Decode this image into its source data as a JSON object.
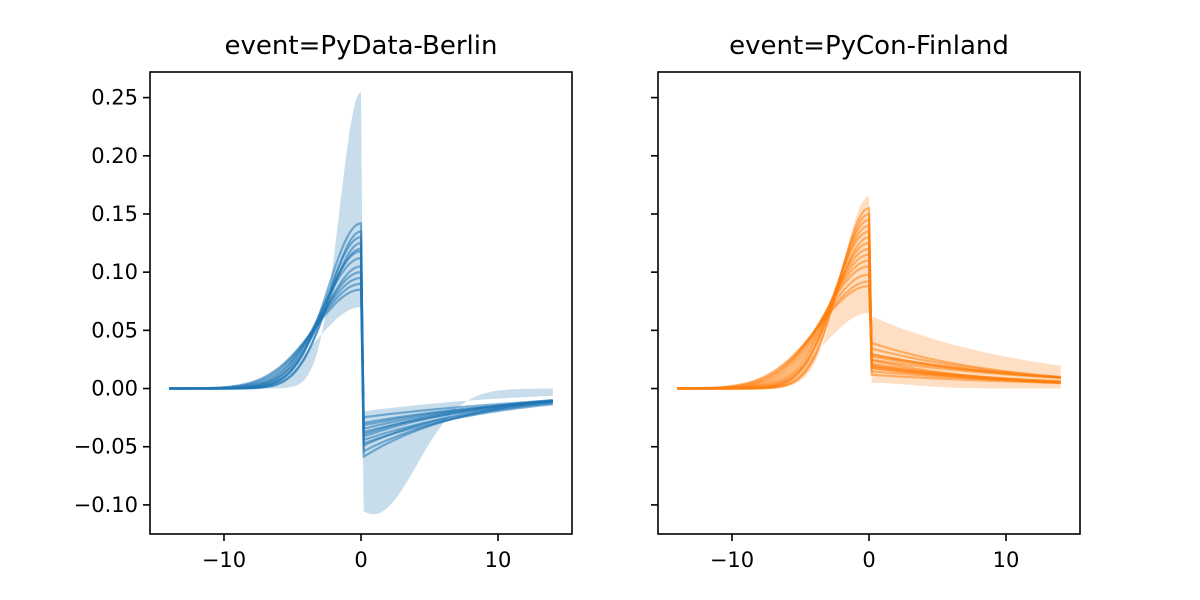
{
  "chart_data": [
    {
      "type": "line",
      "title": "event=PyData-Berlin",
      "color": "#1f77b4",
      "xlim": [
        -15.4,
        15.4
      ],
      "ylim": [
        -0.125,
        0.272
      ],
      "xticks": [
        -10,
        0,
        10
      ],
      "xtick_labels": [
        "−10",
        "0",
        "10"
      ],
      "yticks": [
        -0.1,
        -0.05,
        0,
        0.05,
        0.1,
        0.15,
        0.2,
        0.25
      ],
      "ytick_labels": [
        "−0.10",
        "−0.05",
        "0.00",
        "0.05",
        "0.10",
        "0.15",
        "0.20",
        "0.25"
      ],
      "x_range": [
        -14,
        14
      ],
      "series": [
        {
          "peak": 0.142,
          "drop": -0.04,
          "wl": 3.4,
          "wr": 10
        },
        {
          "peak": 0.135,
          "drop": -0.05,
          "wl": 3.2,
          "wr": 9
        },
        {
          "peak": 0.13,
          "drop": -0.045,
          "wl": 3.5,
          "wr": 11
        },
        {
          "peak": 0.125,
          "drop": -0.035,
          "wl": 3.3,
          "wr": 12
        },
        {
          "peak": 0.12,
          "drop": -0.06,
          "wl": 3.6,
          "wr": 8
        },
        {
          "peak": 0.118,
          "drop": -0.03,
          "wl": 3.8,
          "wr": 14
        },
        {
          "peak": 0.112,
          "drop": -0.025,
          "wl": 4.0,
          "wr": 16
        },
        {
          "peak": 0.105,
          "drop": -0.042,
          "wl": 3.9,
          "wr": 10
        },
        {
          "peak": 0.1,
          "drop": -0.055,
          "wl": 4.2,
          "wr": 9
        },
        {
          "peak": 0.095,
          "drop": -0.038,
          "wl": 4.4,
          "wr": 12
        },
        {
          "peak": 0.09,
          "drop": -0.032,
          "wl": 4.6,
          "wr": 13
        },
        {
          "peak": 0.085,
          "drop": -0.048,
          "wl": 4.8,
          "wr": 11
        }
      ],
      "band": {
        "upper_peak": 0.255,
        "upper_wl": 2.2,
        "lower_left_peak": 0.07,
        "lower_right_min": -0.108,
        "lower_right_center": 0.9,
        "upper_right": -0.02
      }
    },
    {
      "type": "line",
      "title": "event=PyCon-Finland",
      "color": "#ff7f0e",
      "xlim": [
        -15.4,
        15.4
      ],
      "ylim": [
        -0.125,
        0.272
      ],
      "xticks": [
        -10,
        0,
        10
      ],
      "xtick_labels": [
        "−10",
        "0",
        "10"
      ],
      "yticks": [
        -0.1,
        -0.05,
        0,
        0.05,
        0.1,
        0.15,
        0.2,
        0.25
      ],
      "ytick_labels": [],
      "x_range": [
        -14,
        14
      ],
      "series": [
        {
          "peak": 0.155,
          "drop": 0.02,
          "wl": 3.0,
          "wr": 10
        },
        {
          "peak": 0.15,
          "drop": 0.025,
          "wl": 3.1,
          "wr": 9
        },
        {
          "peak": 0.145,
          "drop": 0.018,
          "wl": 3.3,
          "wr": 11
        },
        {
          "peak": 0.14,
          "drop": 0.03,
          "wl": 3.4,
          "wr": 12
        },
        {
          "peak": 0.135,
          "drop": 0.015,
          "wl": 3.6,
          "wr": 14
        },
        {
          "peak": 0.13,
          "drop": 0.022,
          "wl": 3.5,
          "wr": 10
        },
        {
          "peak": 0.125,
          "drop": 0.028,
          "wl": 3.8,
          "wr": 13
        },
        {
          "peak": 0.12,
          "drop": 0.012,
          "wl": 4.0,
          "wr": 15
        },
        {
          "peak": 0.115,
          "drop": 0.035,
          "wl": 4.2,
          "wr": 11
        },
        {
          "peak": 0.11,
          "drop": 0.02,
          "wl": 4.4,
          "wr": 12
        },
        {
          "peak": 0.105,
          "drop": 0.04,
          "wl": 4.6,
          "wr": 10
        },
        {
          "peak": 0.098,
          "drop": 0.025,
          "wl": 4.8,
          "wr": 14
        },
        {
          "peak": 0.092,
          "drop": 0.018,
          "wl": 5.0,
          "wr": 13
        },
        {
          "peak": 0.088,
          "drop": 0.03,
          "wl": 5.2,
          "wr": 12
        }
      ],
      "band": {
        "upper_peak": 0.165,
        "upper_wl": 2.8,
        "lower_left_peak": 0.065,
        "lower_right_min": 0.005,
        "lower_right_center": 0,
        "upper_right": 0.063
      }
    }
  ]
}
